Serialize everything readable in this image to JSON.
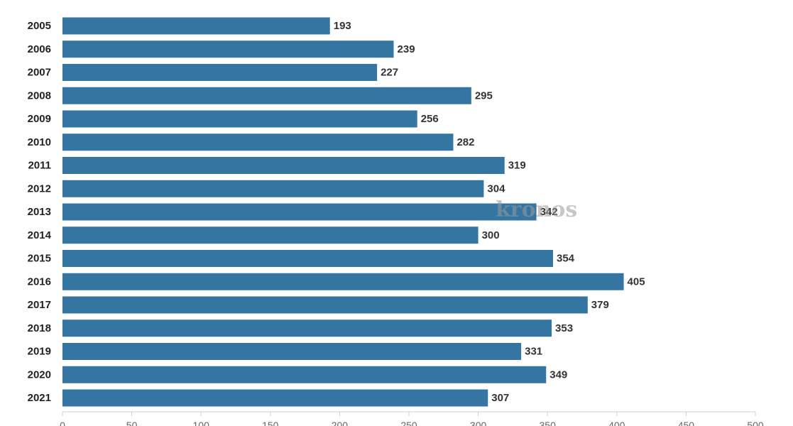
{
  "watermark": "kronos",
  "colors": {
    "bar": "#3575a2",
    "axis": "#cccccc",
    "label": "#222222"
  },
  "chart_data": {
    "type": "bar",
    "orientation": "horizontal",
    "categories": [
      "2005",
      "2006",
      "2007",
      "2008",
      "2009",
      "2010",
      "2011",
      "2012",
      "2013",
      "2014",
      "2015",
      "2016",
      "2017",
      "2018",
      "2019",
      "2020",
      "2021"
    ],
    "values": [
      193,
      239,
      227,
      295,
      256,
      282,
      319,
      304,
      342,
      300,
      354,
      405,
      379,
      353,
      331,
      349,
      307
    ],
    "xlim": [
      0,
      500
    ],
    "xticks": [
      0,
      50,
      100,
      150,
      200,
      250,
      300,
      350,
      400,
      450,
      500
    ],
    "grid": false,
    "data_labels": true
  }
}
